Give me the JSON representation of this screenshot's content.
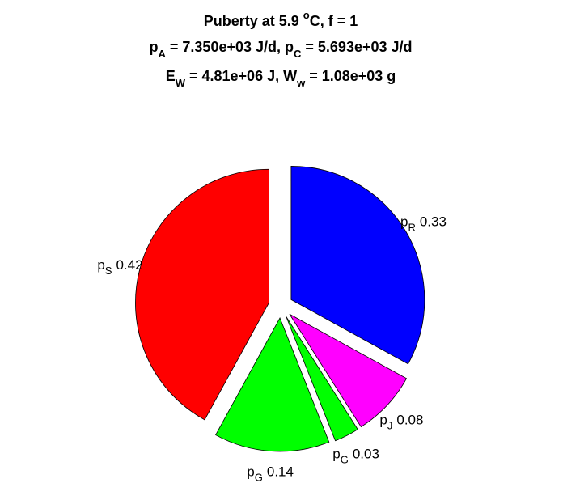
{
  "chart_data": {
    "type": "pie",
    "title": [
      [
        "Puberty at 5.9 ",
        "o",
        "C, f = 1"
      ],
      [
        "p",
        "A",
        " = 7.350e+03 J/d,  p",
        "C",
        " = 5.693e+03 J/d"
      ],
      [
        "E",
        "W",
        " = 4.81e+06 J, W",
        "w",
        " = 1.08e+03 g"
      ]
    ],
    "categories": [
      [
        "p",
        "R"
      ],
      [
        "p",
        "J"
      ],
      [
        "p",
        "G"
      ],
      [
        "p",
        "G"
      ],
      [
        "p",
        "S"
      ]
    ],
    "values": [
      0.33,
      0.08,
      0.03,
      0.14,
      0.42
    ],
    "colors": [
      "#0000ff",
      "#ff00ff",
      "#00ff00",
      "#00ff00",
      "#ff0000"
    ],
    "exploded": true
  }
}
